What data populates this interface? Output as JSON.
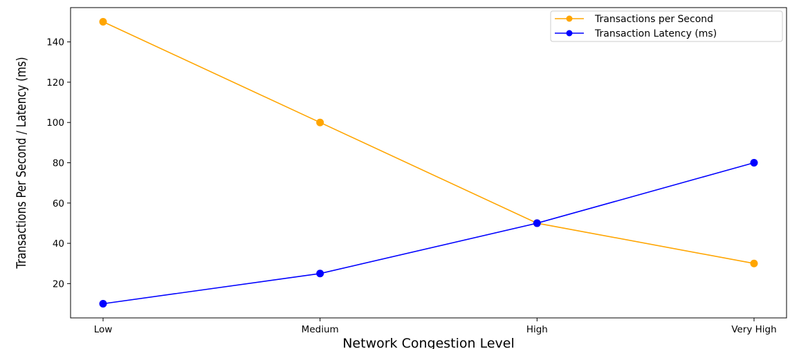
{
  "chart_data": {
    "type": "line",
    "categories": [
      "Low",
      "Medium",
      "High",
      "Very High"
    ],
    "series": [
      {
        "name": "Transactions per Second",
        "values": [
          150,
          100,
          50,
          30
        ],
        "color": "#FFA500"
      },
      {
        "name": "Transaction Latency (ms)",
        "values": [
          10,
          25,
          50,
          80
        ],
        "color": "#0000FF"
      }
    ],
    "xlabel": "Network Congestion Level",
    "ylabel": "Transactions Per Second / Latency (ms)",
    "ylim": [
      2.97,
      157.03
    ],
    "yticks": [
      20,
      40,
      60,
      80,
      100,
      120,
      140
    ],
    "grid": false,
    "legend_position": "top-right",
    "marker": "circle"
  }
}
